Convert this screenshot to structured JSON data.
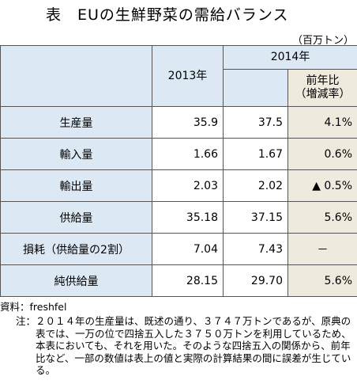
{
  "title": "表　EUの生鮮野菜の需給バランス",
  "unit": "（百万トン）",
  "header": {
    "col_2013": "2013年",
    "col_2014": "2014年",
    "yoy_line1": "前年比",
    "yoy_line2": "（増減率）"
  },
  "rows": [
    {
      "label": "生産量",
      "v2013": "35.9",
      "v2014": "37.5",
      "yoy": "4.1%"
    },
    {
      "label": "輸入量",
      "v2013": "1.66",
      "v2014": "1.67",
      "yoy": "0.6%"
    },
    {
      "label": "輸出量",
      "v2013": "2.03",
      "v2014": "2.02",
      "yoy": "▲ 0.5%"
    },
    {
      "label": "供給量",
      "v2013": "35.18",
      "v2014": "37.15",
      "yoy": "5.6%"
    },
    {
      "label": "損耗（供給量の2割）",
      "v2013": "7.04",
      "v2014": "7.43",
      "yoy": "－"
    },
    {
      "label": "純供給量",
      "v2013": "28.15",
      "v2014": "29.70",
      "yoy": "5.6%"
    }
  ],
  "source": "資料：freshfel",
  "note_label": "注：",
  "note_text": "２０１４年の生産量は、既述の通り、３７４７万トンであるが、原典の表では、一万の位で四捨五入した３７５０万トンを利用しているため、本表においても、それを用いた。そのような四捨五入の関係から、前年比など、一部の数値は表上の値と実際の計算結果の間に誤差が生じている。"
}
